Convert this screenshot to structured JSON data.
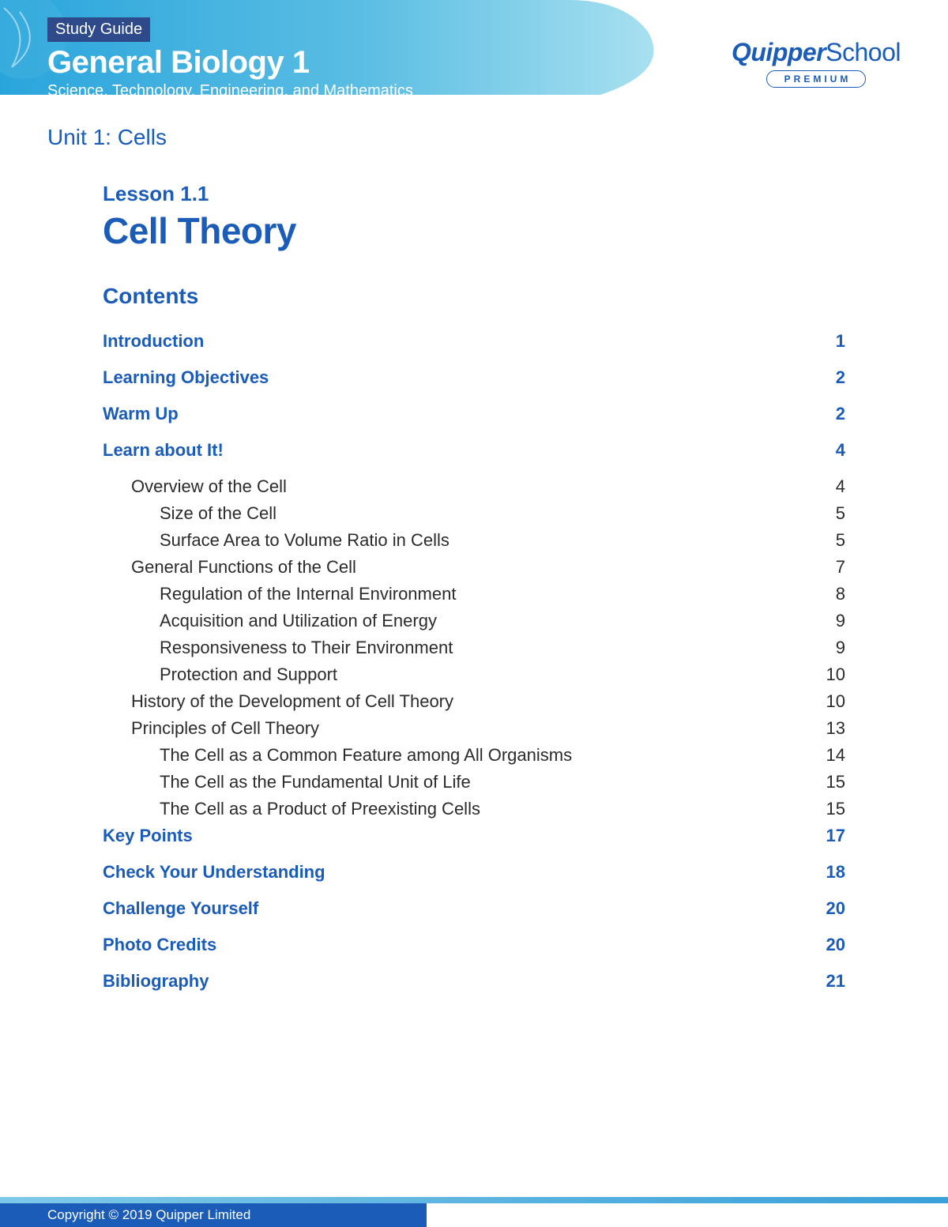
{
  "header": {
    "badge": "Study Guide",
    "course": "General Biology 1",
    "subtitle": "Science, Technology, Engineering, and Mathematics",
    "logo_primary": "Quipper",
    "logo_secondary": "School",
    "premium": "PREMIUM"
  },
  "unit": "Unit 1: Cells",
  "lesson": {
    "number": "Lesson 1.1",
    "title": "Cell Theory"
  },
  "contents_heading": "Contents",
  "toc": [
    {
      "level": "section",
      "title": "Introduction",
      "page": "1"
    },
    {
      "level": "section",
      "title": "Learning Objectives",
      "page": "2"
    },
    {
      "level": "section",
      "title": "Warm Up",
      "page": "2"
    },
    {
      "level": "section",
      "title": "Learn about It!",
      "page": "4"
    },
    {
      "level": "sub",
      "title": "Overview of the Cell",
      "page": "4"
    },
    {
      "level": "subsub",
      "title": "Size of the Cell",
      "page": "5"
    },
    {
      "level": "subsub",
      "title": "Surface Area to Volume Ratio in Cells",
      "page": "5"
    },
    {
      "level": "sub",
      "title": "General Functions of the Cell",
      "page": "7"
    },
    {
      "level": "subsub",
      "title": "Regulation of the Internal Environment",
      "page": "8"
    },
    {
      "level": "subsub",
      "title": "Acquisition and Utilization of Energy",
      "page": "9"
    },
    {
      "level": "subsub",
      "title": "Responsiveness to Their Environment",
      "page": "9"
    },
    {
      "level": "subsub",
      "title": "Protection and Support",
      "page": "10"
    },
    {
      "level": "sub",
      "title": "History of the Development of Cell Theory",
      "page": "10"
    },
    {
      "level": "sub",
      "title": "Principles of Cell Theory",
      "page": "13"
    },
    {
      "level": "subsub",
      "title": "The Cell as a Common Feature among All Organisms",
      "page": "14"
    },
    {
      "level": "subsub",
      "title": "The Cell as the Fundamental Unit of Life",
      "page": "15"
    },
    {
      "level": "subsub",
      "title": "The Cell as a Product of Preexisting Cells",
      "page": "15"
    },
    {
      "level": "section",
      "title": "Key Points",
      "page": "17"
    },
    {
      "level": "section",
      "title": "Check Your Understanding",
      "page": "18"
    },
    {
      "level": "section",
      "title": "Challenge Yourself",
      "page": "20"
    },
    {
      "level": "section",
      "title": "Photo Credits",
      "page": "20"
    },
    {
      "level": "section",
      "title": "Bibliography",
      "page": "21"
    }
  ],
  "footer": {
    "copyright": "Copyright © 2019 Quipper Limited"
  },
  "colors": {
    "primary": "#1a5cb8",
    "badge_bg": "#2e4a8a",
    "header_grad_start": "#2aa5dc",
    "header_grad_end": "#80d0ea",
    "text_dark": "#2b2b2b",
    "white": "#ffffff"
  }
}
